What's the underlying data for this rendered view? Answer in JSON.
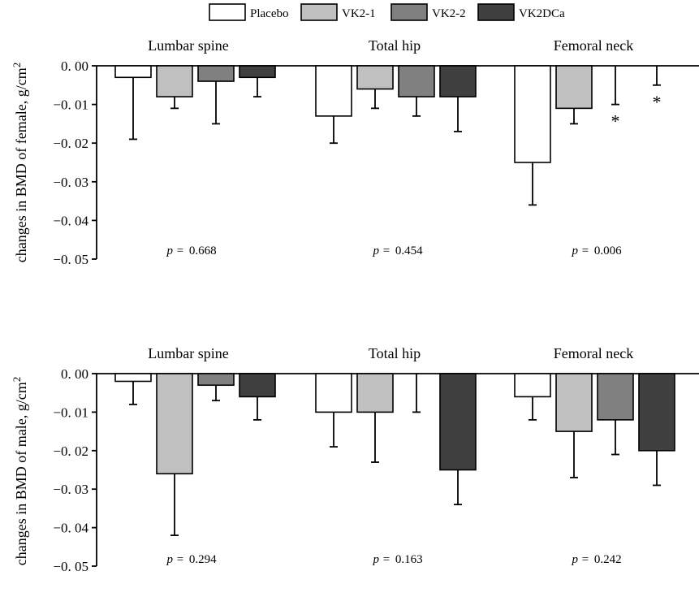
{
  "legend": [
    {
      "name": "Placebo",
      "color": "#ffffff"
    },
    {
      "name": "VK2-1",
      "color": "#c0c0c0"
    },
    {
      "name": "VK2-2",
      "color": "#808080"
    },
    {
      "name": "VK2DCa",
      "color": "#404040"
    }
  ],
  "chart_data": [
    {
      "type": "bar",
      "ylabel": "changes in BMD of female, g/cm2",
      "ylabel_main": "changes in BMD of female, g/cm",
      "ylabel_sup": "2",
      "ylim": [
        -0.05,
        0.0
      ],
      "yticks": [
        0.0,
        -0.01,
        -0.02,
        -0.03,
        -0.04,
        -0.05
      ],
      "ytick_labels": [
        "0. 00",
        "−0. 01",
        "−0. 02",
        "−0. 03",
        "−0. 04",
        "−0. 05"
      ],
      "categories": [
        "Lumbar spine",
        "Total hip",
        "Femoral neck"
      ],
      "series": [
        {
          "name": "Placebo",
          "values": [
            -0.003,
            -0.013,
            -0.025
          ],
          "error_low": [
            -0.019,
            -0.02,
            -0.036
          ]
        },
        {
          "name": "VK2-1",
          "values": [
            -0.008,
            -0.006,
            -0.011
          ],
          "error_low": [
            -0.011,
            -0.011,
            -0.015
          ]
        },
        {
          "name": "VK2-2",
          "values": [
            -0.004,
            -0.008,
            0.0
          ],
          "error_low": [
            -0.015,
            -0.013,
            -0.01
          ]
        },
        {
          "name": "VK2DCa",
          "values": [
            -0.003,
            -0.008,
            0.0
          ],
          "error_low": [
            -0.008,
            -0.017,
            -0.005
          ]
        }
      ],
      "annotations": [
        {
          "series": "VK2-2",
          "category": "Femoral neck",
          "text": "*"
        },
        {
          "series": "VK2DCa",
          "category": "Femoral neck",
          "text": "*"
        }
      ],
      "p_prefix": "p =",
      "p_values": [
        "0.668",
        "0.454",
        "0.006"
      ]
    },
    {
      "type": "bar",
      "ylabel": "changes in BMD of male, g/cm2",
      "ylabel_main": "changes in BMD of male, g/cm",
      "ylabel_sup": "2",
      "ylim": [
        -0.05,
        0.0
      ],
      "yticks": [
        0.0,
        -0.01,
        -0.02,
        -0.03,
        -0.04,
        -0.05
      ],
      "ytick_labels": [
        "0. 00",
        "−0. 01",
        "−0. 02",
        "−0. 03",
        "−0. 04",
        "−0. 05"
      ],
      "categories": [
        "Lumbar spine",
        "Total hip",
        "Femoral neck"
      ],
      "series": [
        {
          "name": "Placebo",
          "values": [
            -0.002,
            -0.01,
            -0.006
          ],
          "error_low": [
            -0.008,
            -0.019,
            -0.012
          ]
        },
        {
          "name": "VK2-1",
          "values": [
            -0.026,
            -0.01,
            -0.015
          ],
          "error_low": [
            -0.042,
            -0.023,
            -0.027
          ]
        },
        {
          "name": "VK2-2",
          "values": [
            -0.003,
            0.0,
            -0.012
          ],
          "error_low": [
            -0.007,
            -0.01,
            -0.021
          ]
        },
        {
          "name": "VK2DCa",
          "values": [
            -0.006,
            -0.025,
            -0.02
          ],
          "error_low": [
            -0.012,
            -0.034,
            -0.029
          ]
        }
      ],
      "annotations": [],
      "p_prefix": "p =",
      "p_values": [
        "0.294",
        "0.163",
        "0.242"
      ]
    }
  ]
}
